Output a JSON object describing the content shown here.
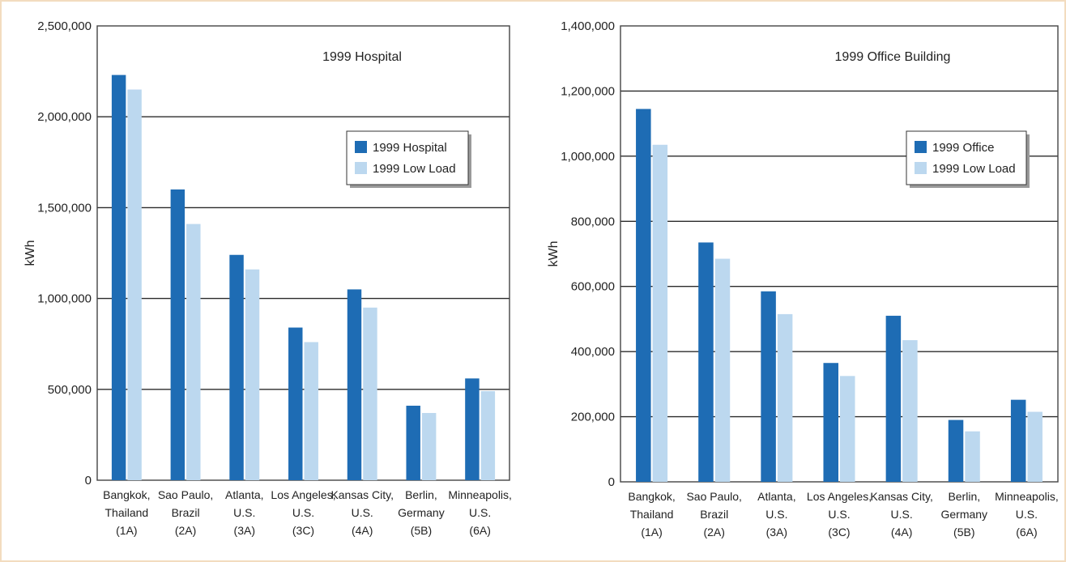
{
  "colors": {
    "series_dark": "#1e6cb4",
    "series_light": "#bcd8ef",
    "gridline": "#2b2b2b",
    "frame_border": "#f3dcbf"
  },
  "chart_data": [
    {
      "type": "bar",
      "title": "1999 Hospital",
      "ylabel": "kWh",
      "xlabel": "",
      "ylim": [
        0,
        2500000
      ],
      "yticks": [
        "0",
        "500,000",
        "1,000,000",
        "1,500,000",
        "2,000,000",
        "2,500,000"
      ],
      "categories": [
        [
          "Bangkok,",
          "Thailand",
          "(1A)"
        ],
        [
          "Sao Paulo,",
          "Brazil",
          "(2A)"
        ],
        [
          "Atlanta,",
          "U.S.",
          "(3A)"
        ],
        [
          "Los Angeles,",
          "U.S.",
          "(3C)"
        ],
        [
          "Kansas City,",
          "U.S.",
          "(4A)"
        ],
        [
          "Berlin,",
          "Germany",
          "(5B)"
        ],
        [
          "Minneapolis,",
          "U.S.",
          "(6A)"
        ]
      ],
      "series": [
        {
          "name": "1999 Hospital",
          "values": [
            2230000,
            1600000,
            1240000,
            840000,
            1050000,
            410000,
            560000
          ]
        },
        {
          "name": "1999 Low Load",
          "values": [
            2150000,
            1410000,
            1160000,
            760000,
            950000,
            370000,
            490000
          ]
        }
      ],
      "legend": "right",
      "grid": true
    },
    {
      "type": "bar",
      "title": "1999 Office Building",
      "ylabel": "kWh",
      "xlabel": "",
      "ylim": [
        0,
        1400000
      ],
      "yticks": [
        "0",
        "200,000",
        "400,000",
        "600,000",
        "800,000",
        "1,000,000",
        "1,200,000",
        "1,400,000"
      ],
      "categories": [
        [
          "Bangkok,",
          "Thailand",
          "(1A)"
        ],
        [
          "Sao Paulo,",
          "Brazil",
          "(2A)"
        ],
        [
          "Atlanta,",
          "U.S.",
          "(3A)"
        ],
        [
          "Los Angeles,",
          "U.S.",
          "(3C)"
        ],
        [
          "Kansas City,",
          "U.S.",
          "(4A)"
        ],
        [
          "Berlin,",
          "Germany",
          "(5B)"
        ],
        [
          "Minneapolis,",
          "U.S.",
          "(6A)"
        ]
      ],
      "series": [
        {
          "name": "1999 Office",
          "values": [
            1145000,
            735000,
            585000,
            365000,
            510000,
            190000,
            252000
          ]
        },
        {
          "name": "1999 Low Load",
          "values": [
            1035000,
            685000,
            515000,
            325000,
            435000,
            155000,
            215000
          ]
        }
      ],
      "legend": "right",
      "grid": true
    }
  ]
}
